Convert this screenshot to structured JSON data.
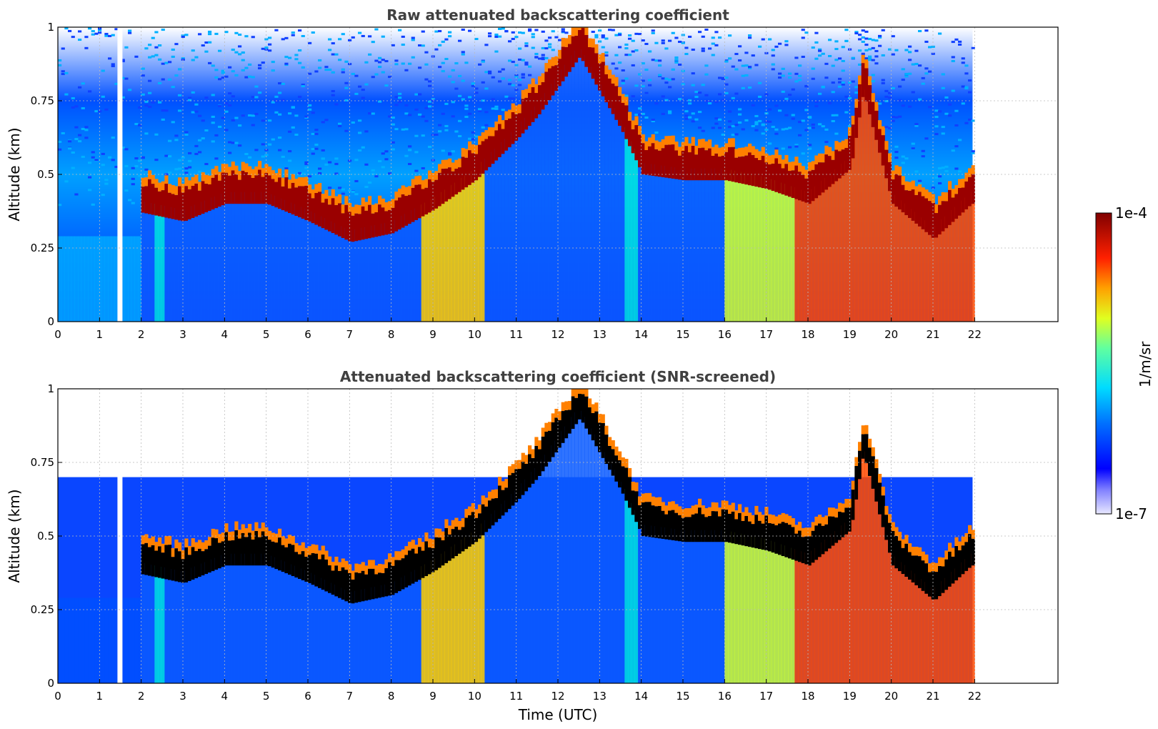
{
  "chart_data": [
    {
      "type": "heatmap",
      "title": "Raw attenuated backscattering coefficient",
      "xlabel": "",
      "ylabel": "Altitude (km)",
      "xlim": [
        0,
        24
      ],
      "ylim": [
        0,
        1
      ],
      "xticks": [
        "0",
        "1",
        "2",
        "3",
        "4",
        "5",
        "6",
        "7",
        "8",
        "9",
        "10",
        "11",
        "12",
        "13",
        "14",
        "15",
        "16",
        "17",
        "18",
        "19",
        "20",
        "21",
        "22"
      ],
      "yticks": [
        "0",
        "0.25",
        "0.5",
        "0.75",
        "1"
      ],
      "grid": true,
      "data_end_hour": 21.95,
      "layer_top_km": [
        {
          "x": 2.0,
          "y": 0.47
        },
        {
          "x": 3.0,
          "y": 0.44
        },
        {
          "x": 4.0,
          "y": 0.5
        },
        {
          "x": 5.0,
          "y": 0.5
        },
        {
          "x": 6.0,
          "y": 0.44
        },
        {
          "x": 7.0,
          "y": 0.37
        },
        {
          "x": 8.0,
          "y": 0.4
        },
        {
          "x": 9.0,
          "y": 0.48
        },
        {
          "x": 10.0,
          "y": 0.58
        },
        {
          "x": 11.0,
          "y": 0.72
        },
        {
          "x": 11.5,
          "y": 0.8
        },
        {
          "x": 12.5,
          "y": 1.0
        },
        {
          "x": 13.5,
          "y": 0.75
        },
        {
          "x": 14.0,
          "y": 0.6
        },
        {
          "x": 15.0,
          "y": 0.58
        },
        {
          "x": 16.0,
          "y": 0.58
        },
        {
          "x": 17.0,
          "y": 0.55
        },
        {
          "x": 18.0,
          "y": 0.5
        },
        {
          "x": 19.0,
          "y": 0.62
        },
        {
          "x": 19.3,
          "y": 0.88
        },
        {
          "x": 20.0,
          "y": 0.5
        },
        {
          "x": 21.0,
          "y": 0.38
        },
        {
          "x": 21.9,
          "y": 0.5
        }
      ]
    },
    {
      "type": "heatmap",
      "title": "Attenuated backscattering coefficient (SNR-screened)",
      "xlabel": "Time (UTC)",
      "ylabel": "Altitude (km)",
      "xlim": [
        0,
        24
      ],
      "ylim": [
        0,
        1
      ],
      "xticks": [
        "0",
        "1",
        "2",
        "3",
        "4",
        "5",
        "6",
        "7",
        "8",
        "9",
        "10",
        "11",
        "12",
        "13",
        "14",
        "15",
        "16",
        "17",
        "18",
        "19",
        "20",
        "21",
        "22"
      ],
      "yticks": [
        "0",
        "0.25",
        "0.5",
        "0.75",
        "1"
      ],
      "grid": true,
      "data_end_hour": 21.95
    }
  ],
  "colorbar": {
    "label": "1/m/sr",
    "max_label": "1e-4",
    "min_label": "1e-7",
    "colors": [
      "#e8e8ff",
      "#a8a8ff",
      "#5050ff",
      "#0000ff",
      "#0050ff",
      "#00a0ff",
      "#00e0ff",
      "#40ffc0",
      "#a0ff60",
      "#e0ff20",
      "#ffe000",
      "#ffa000",
      "#ff5000",
      "#ff1000",
      "#c00000",
      "#800000"
    ]
  }
}
